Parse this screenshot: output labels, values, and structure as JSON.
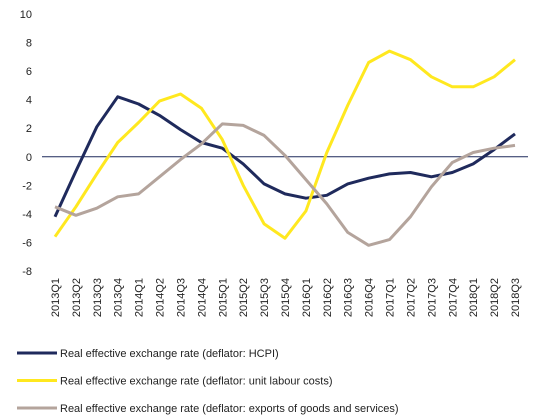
{
  "chart_data": {
    "type": "line",
    "categories": [
      "2013Q1",
      "2013Q2",
      "2013Q3",
      "2013Q4",
      "2014Q1",
      "2014Q2",
      "2014Q3",
      "2014Q4",
      "2015Q1",
      "2015Q2",
      "2015Q3",
      "2015Q4",
      "2016Q1",
      "2016Q2",
      "2016Q3",
      "2016Q4",
      "2017Q1",
      "2017Q2",
      "2017Q3",
      "2017Q4",
      "2018Q1",
      "2018Q2",
      "2018Q3"
    ],
    "series": [
      {
        "name": "Real effective exchange rate (deflator: HCPI)",
        "color": "#1f2a5c",
        "values": [
          -4.2,
          -1.0,
          2.1,
          4.2,
          3.7,
          2.9,
          1.9,
          1.0,
          0.6,
          -0.5,
          -1.9,
          -2.6,
          -2.9,
          -2.7,
          -1.9,
          -1.5,
          -1.2,
          -1.1,
          -1.4,
          -1.1,
          -0.5,
          0.5,
          1.6
        ]
      },
      {
        "name": "Real effective exchange rate (deflator: unit labour costs)",
        "color": "#ffe81f",
        "values": [
          -5.6,
          -3.5,
          -1.2,
          1.0,
          2.4,
          3.9,
          4.4,
          3.4,
          1.2,
          -2.0,
          -4.7,
          -5.7,
          -3.8,
          0.3,
          3.6,
          6.6,
          7.4,
          6.8,
          5.6,
          4.9,
          4.9,
          5.6,
          6.8
        ]
      },
      {
        "name": "Real effective exchange rate (deflator: exports of goods and services)",
        "color": "#b4a49c",
        "values": [
          -3.5,
          -4.1,
          -3.6,
          -2.8,
          -2.6,
          -1.4,
          -0.2,
          0.9,
          2.3,
          2.2,
          1.5,
          0.1,
          -1.6,
          -3.3,
          -5.3,
          -6.2,
          -5.8,
          -4.2,
          -2.1,
          -0.4,
          0.3,
          0.6,
          0.8
        ]
      }
    ],
    "ylim": [
      -8,
      10
    ],
    "yticks": [
      -8,
      -6,
      -4,
      -2,
      0,
      2,
      4,
      6,
      8,
      10
    ],
    "zero_line_color": "#1f2a5c"
  }
}
